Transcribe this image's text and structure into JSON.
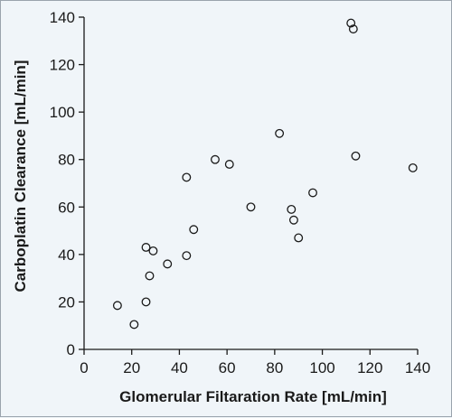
{
  "chart_data": {
    "type": "scatter",
    "title": "",
    "xlabel": "Glomerular Filtaration Rate [mL/min]",
    "ylabel": "Carboplatin Clearance [mL/min]",
    "xlim": [
      0,
      140
    ],
    "ylim": [
      0,
      140
    ],
    "xticks": [
      0,
      20,
      40,
      60,
      80,
      100,
      120,
      140
    ],
    "yticks": [
      0,
      20,
      40,
      60,
      80,
      100,
      120,
      140
    ],
    "grid": false,
    "legend": "none",
    "colors": {
      "marker": "#1a1a1a",
      "background": "#f0f5f9"
    },
    "points": [
      {
        "x": 14,
        "y": 18.5
      },
      {
        "x": 21,
        "y": 10.5
      },
      {
        "x": 26,
        "y": 43
      },
      {
        "x": 26,
        "y": 20
      },
      {
        "x": 27.5,
        "y": 31
      },
      {
        "x": 29,
        "y": 41.5
      },
      {
        "x": 35,
        "y": 36
      },
      {
        "x": 43,
        "y": 39.5
      },
      {
        "x": 43,
        "y": 72.5
      },
      {
        "x": 46,
        "y": 50.5
      },
      {
        "x": 55,
        "y": 80
      },
      {
        "x": 61,
        "y": 78
      },
      {
        "x": 70,
        "y": 60
      },
      {
        "x": 82,
        "y": 91
      },
      {
        "x": 87,
        "y": 59
      },
      {
        "x": 88,
        "y": 54.5
      },
      {
        "x": 90,
        "y": 47
      },
      {
        "x": 96,
        "y": 66
      },
      {
        "x": 112,
        "y": 137.5
      },
      {
        "x": 113,
        "y": 135
      },
      {
        "x": 114,
        "y": 81.5
      },
      {
        "x": 138,
        "y": 76.5
      }
    ]
  }
}
